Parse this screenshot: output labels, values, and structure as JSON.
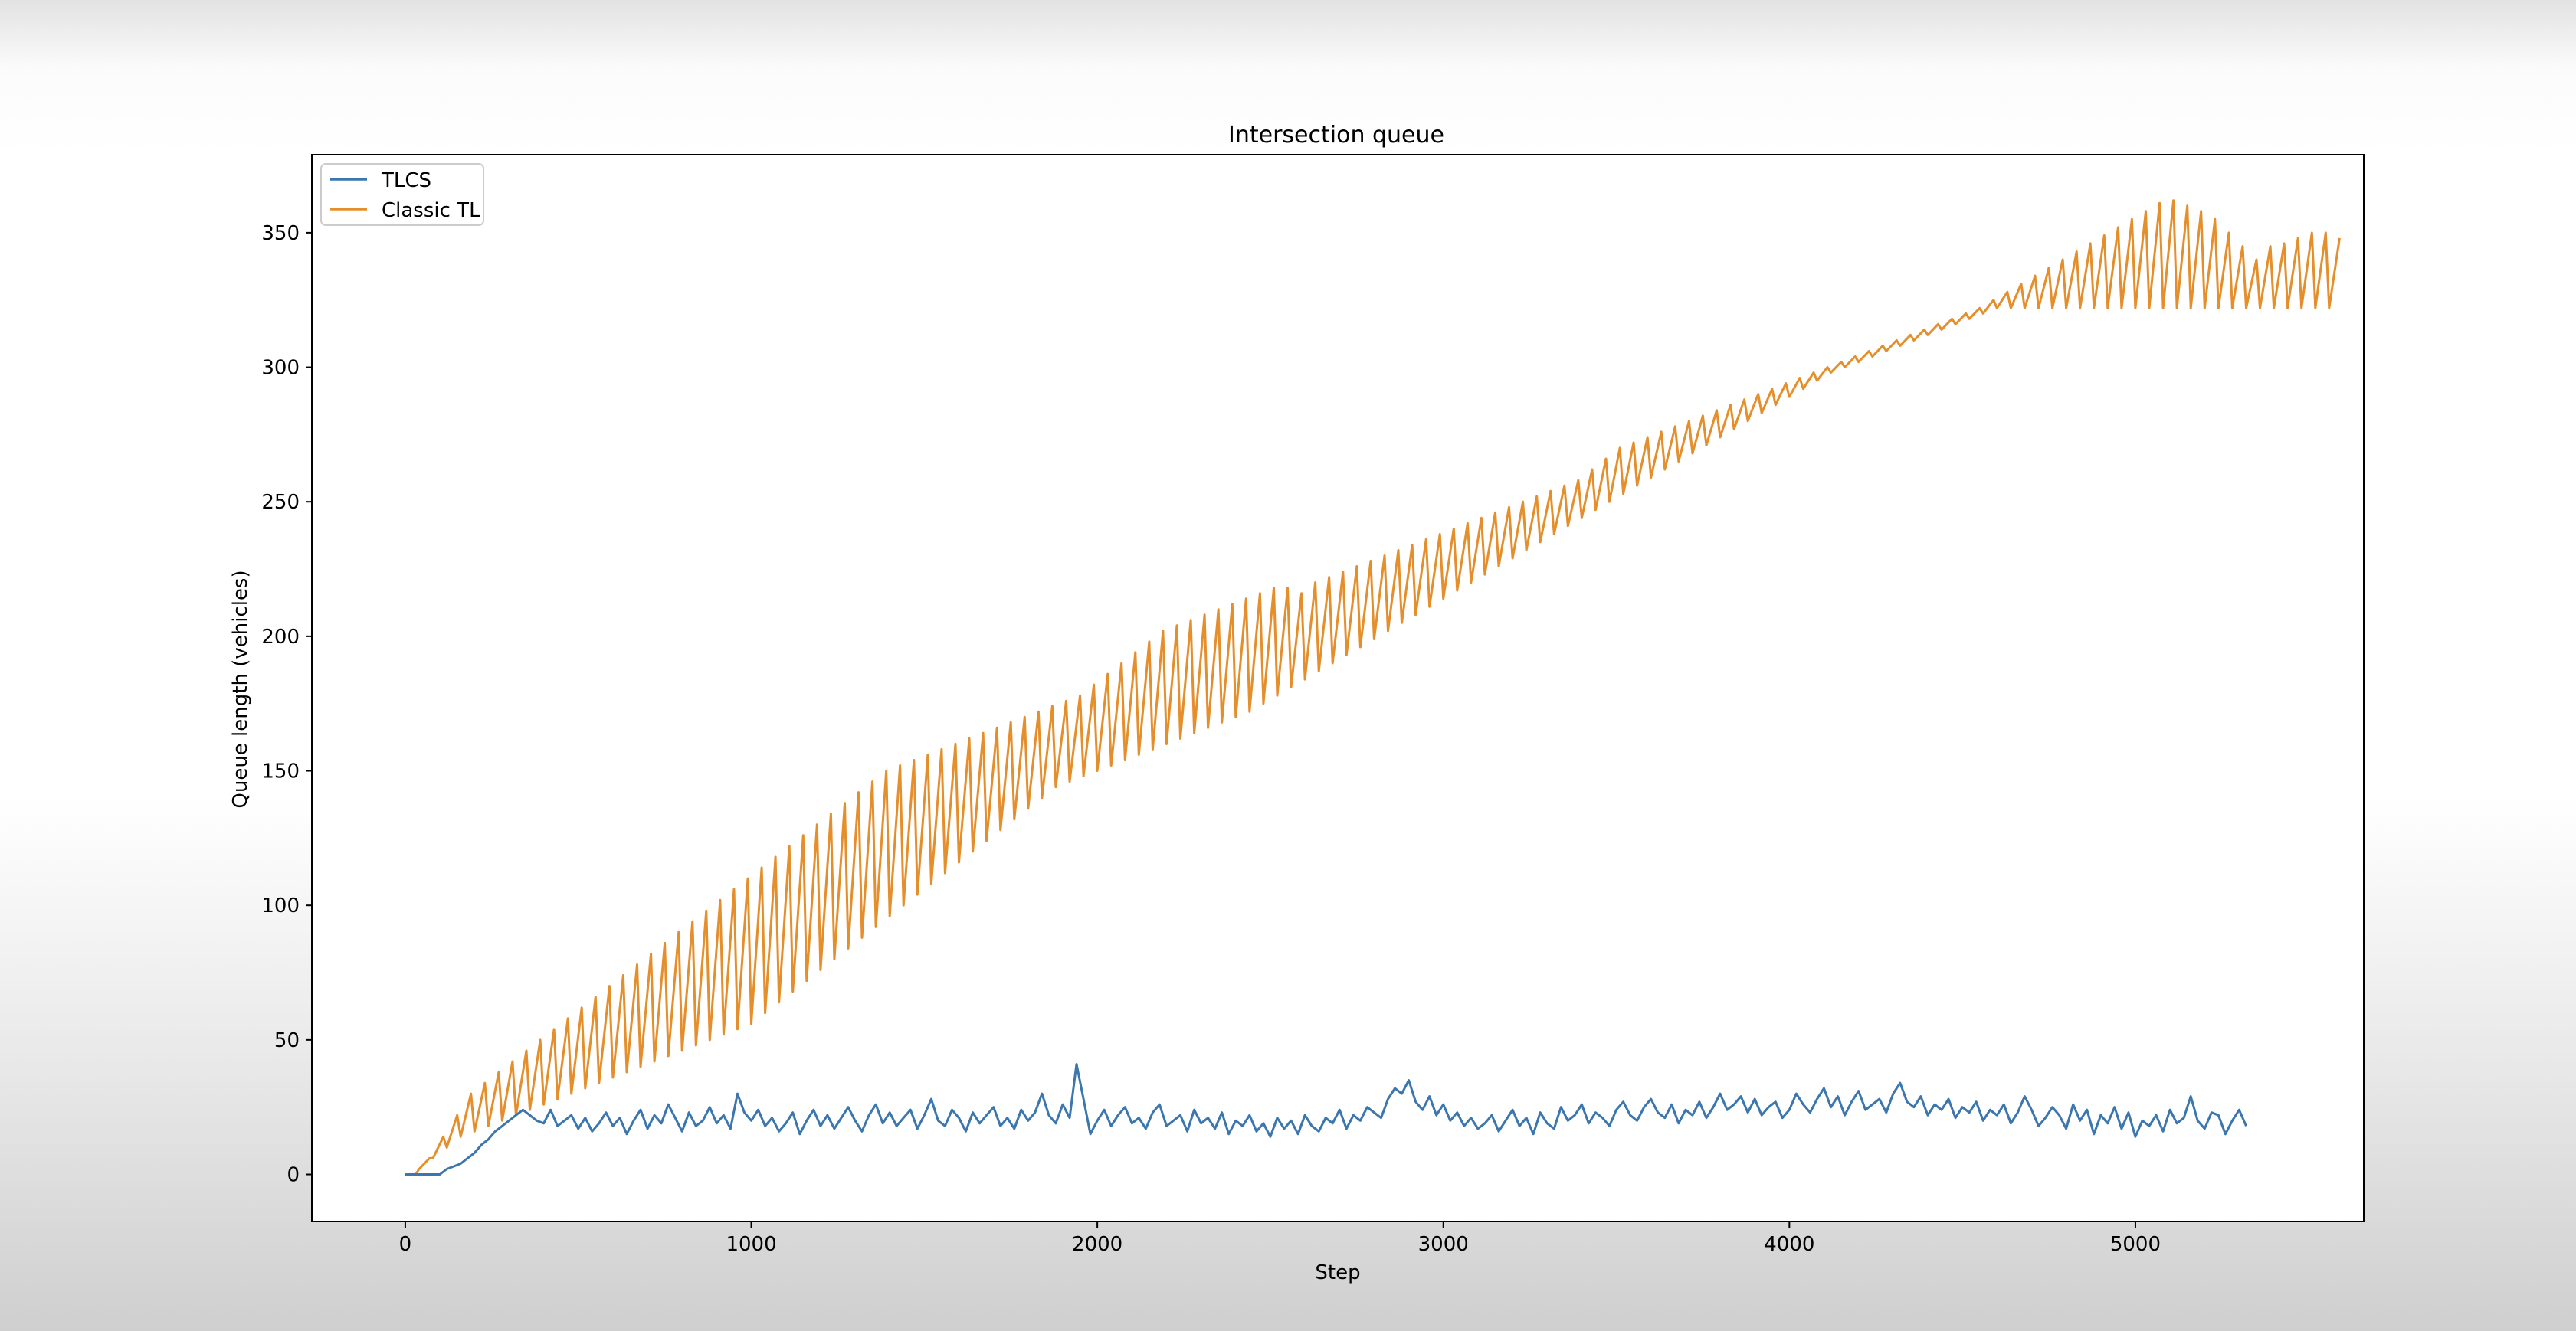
{
  "chart_data": {
    "type": "line",
    "title": "Intersection queue",
    "xlabel": "Step",
    "ylabel": "Queue length (vehicles)",
    "xlim": [
      -270,
      5660
    ],
    "ylim": [
      -17.5,
      379
    ],
    "xticks": [
      0,
      1000,
      2000,
      3000,
      4000,
      5000
    ],
    "yticks": [
      0,
      50,
      100,
      150,
      200,
      250,
      300,
      350
    ],
    "grid": false,
    "legend": "top-left",
    "series": [
      {
        "name": "TLCS",
        "color": "#3b76af",
        "sample_step": 20,
        "values": [
          0,
          0,
          0,
          0,
          0,
          0,
          2,
          3,
          4,
          6,
          8,
          11,
          13,
          16,
          18,
          20,
          22,
          24,
          22,
          20,
          19,
          24,
          18,
          20,
          22,
          17,
          21,
          16,
          19,
          23,
          18,
          21,
          15,
          20,
          24,
          17,
          22,
          19,
          26,
          21,
          16,
          23,
          18,
          20,
          25,
          19,
          22,
          17,
          30,
          23,
          20,
          24,
          18,
          21,
          16,
          19,
          23,
          15,
          20,
          24,
          18,
          22,
          17,
          21,
          25,
          20,
          16,
          22,
          26,
          19,
          23,
          18,
          21,
          24,
          17,
          22,
          28,
          20,
          18,
          24,
          21,
          16,
          23,
          19,
          22,
          25,
          18,
          21,
          17,
          24,
          20,
          23,
          30,
          22,
          19,
          26,
          21,
          41,
          28,
          15,
          20,
          24,
          18,
          22,
          25,
          19,
          21,
          17,
          23,
          26,
          18,
          20,
          22,
          16,
          24,
          19,
          21,
          17,
          23,
          15,
          20,
          18,
          22,
          16,
          19,
          14,
          21,
          17,
          20,
          15,
          22,
          18,
          16,
          21,
          19,
          24,
          17,
          22,
          20,
          25,
          23,
          21,
          28,
          32,
          30,
          35,
          27,
          24,
          29,
          22,
          26,
          20,
          23,
          18,
          21,
          17,
          19,
          22,
          16,
          20,
          24,
          18,
          21,
          15,
          23,
          19,
          17,
          25,
          20,
          22,
          26,
          19,
          23,
          21,
          18,
          24,
          27,
          22,
          20,
          25,
          28,
          23,
          21,
          26,
          19,
          24,
          22,
          27,
          21,
          25,
          30,
          24,
          26,
          29,
          23,
          28,
          22,
          25,
          27,
          21,
          24,
          30,
          26,
          23,
          28,
          32,
          25,
          29,
          22,
          27,
          31,
          24,
          26,
          28,
          23,
          30,
          34,
          27,
          25,
          29,
          22,
          26,
          24,
          28,
          21,
          25,
          23,
          27,
          20,
          24,
          22,
          26,
          19,
          23,
          29,
          24,
          18,
          21,
          25,
          22,
          17,
          26,
          20,
          24,
          15,
          22,
          19,
          25,
          17,
          23,
          14,
          20,
          18,
          22,
          16,
          24,
          19,
          21,
          29,
          20,
          17,
          23,
          22,
          15,
          20,
          24,
          18
        ]
      },
      {
        "name": "Classic TL",
        "color": "#e58e2c",
        "cycle_steps": 40,
        "sample_step": 20,
        "peaks": [
          0,
          6,
          14,
          22,
          30,
          34,
          38,
          42,
          46,
          50,
          54,
          58,
          62,
          66,
          70,
          74,
          78,
          82,
          86,
          90,
          94,
          98,
          102,
          106,
          110,
          114,
          118,
          122,
          126,
          130,
          134,
          138,
          142,
          146,
          150,
          152,
          154,
          156,
          158,
          160,
          162,
          164,
          166,
          168,
          170,
          172,
          174,
          176,
          178,
          182,
          186,
          190,
          194,
          198,
          202,
          204,
          206,
          208,
          210,
          212,
          214,
          216,
          218,
          218,
          216,
          220,
          222,
          224,
          226,
          228,
          230,
          232,
          234,
          236,
          238,
          240,
          242,
          244,
          246,
          248,
          250,
          252,
          254,
          256,
          258,
          262,
          266,
          270,
          272,
          274,
          276,
          278,
          280,
          282,
          284,
          286,
          288,
          290,
          292,
          294,
          296,
          298,
          300,
          302,
          304,
          306,
          308,
          310,
          312,
          314,
          316,
          318,
          320,
          322,
          325,
          328,
          331,
          334,
          337,
          340,
          343,
          346,
          349,
          352,
          355,
          358,
          361,
          362,
          360,
          358,
          355,
          350,
          345,
          340,
          345,
          346,
          348,
          350,
          350,
          348
        ],
        "troughs": [
          0,
          2,
          6,
          10,
          14,
          16,
          18,
          20,
          22,
          24,
          26,
          28,
          30,
          32,
          34,
          36,
          38,
          40,
          42,
          44,
          46,
          48,
          50,
          52,
          54,
          56,
          60,
          64,
          68,
          72,
          76,
          80,
          84,
          88,
          92,
          96,
          100,
          104,
          108,
          112,
          116,
          120,
          124,
          128,
          132,
          136,
          140,
          144,
          146,
          148,
          150,
          152,
          154,
          156,
          158,
          160,
          162,
          164,
          166,
          168,
          170,
          172,
          175,
          178,
          181,
          184,
          187,
          190,
          193,
          196,
          199,
          202,
          205,
          208,
          211,
          214,
          217,
          220,
          223,
          226,
          229,
          232,
          235,
          238,
          241,
          244,
          247,
          250,
          253,
          256,
          259,
          262,
          265,
          268,
          271,
          274,
          277,
          280,
          283,
          286,
          289,
          292,
          295,
          298,
          300,
          302,
          304,
          306,
          308,
          310,
          312,
          314,
          316,
          318,
          320,
          322,
          322,
          322,
          322,
          322,
          322,
          322,
          322,
          322,
          322,
          322,
          322,
          322,
          322,
          322,
          322,
          322,
          322,
          322,
          322,
          322,
          322,
          322,
          322,
          322
        ]
      }
    ]
  }
}
